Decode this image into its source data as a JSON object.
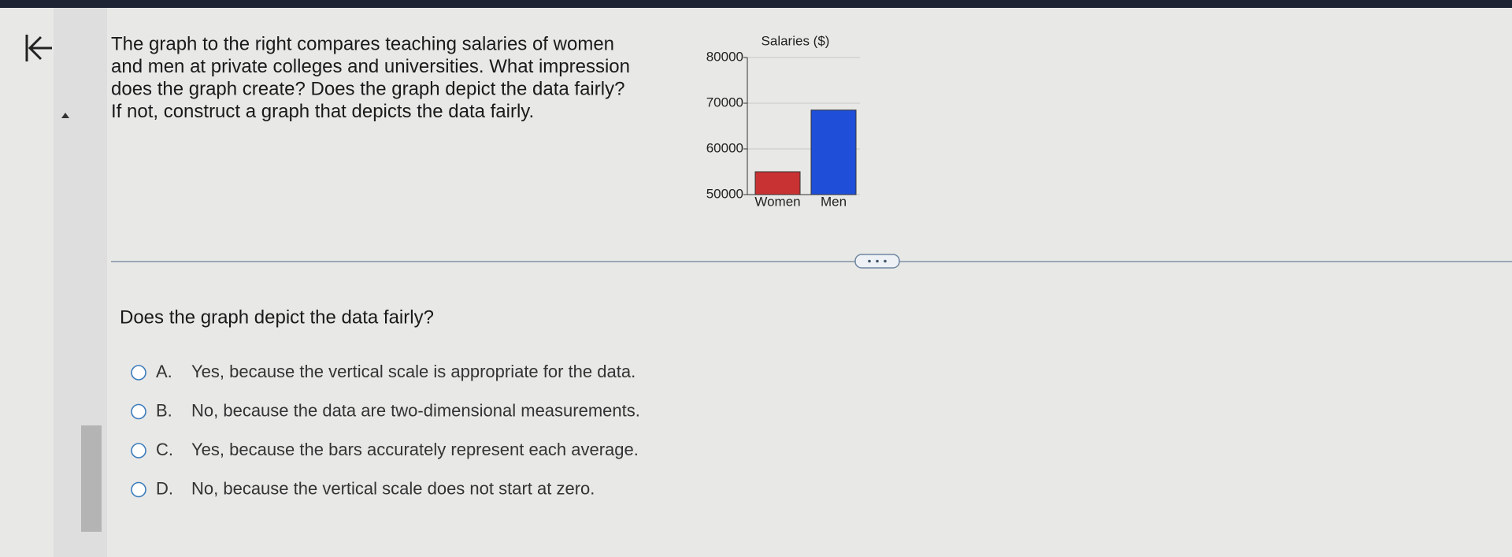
{
  "question": {
    "lines": [
      "The graph to the right compares teaching salaries of women",
      "and men at private colleges and universities. What impression",
      "does the graph create? Does the graph depict the data fairly?",
      "If not, construct a graph that depicts the data fairly."
    ]
  },
  "chart_data": {
    "type": "bar",
    "title": "Salaries ($)",
    "categories": [
      "Women",
      "Men"
    ],
    "values": [
      55000,
      68500
    ],
    "colors": [
      "#c93232",
      "#1f4fd9"
    ],
    "ylim": [
      50000,
      80000
    ],
    "yticks": [
      50000,
      60000,
      70000,
      80000
    ],
    "grid": true
  },
  "prompt": "Does the graph depict the data fairly?",
  "options": [
    {
      "letter": "A.",
      "text": "Yes, because the vertical scale is appropriate for the data."
    },
    {
      "letter": "B.",
      "text": "No, because the data are two-dimensional measurements."
    },
    {
      "letter": "C.",
      "text": "Yes, because the bars accurately represent each average."
    },
    {
      "letter": "D.",
      "text": "No, because the vertical scale does not start at zero."
    }
  ]
}
